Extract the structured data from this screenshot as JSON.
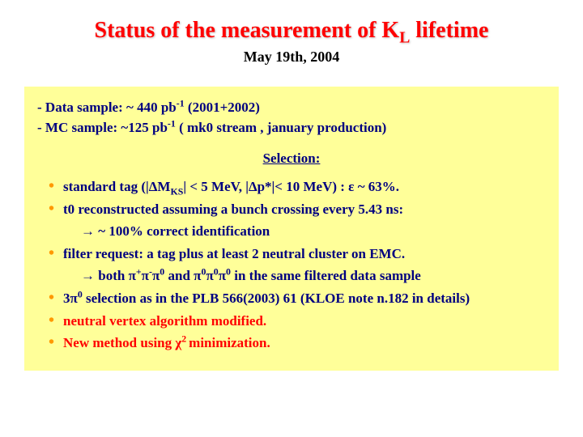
{
  "colors": {
    "title": "#ff0000",
    "body_text": "#000080",
    "bullet": "#ff9900",
    "highlight_box_bg": "#ffff99",
    "red_item": "#ff0000",
    "background": "#ffffff"
  },
  "title": {
    "pre": "Status of the measurement of K",
    "sub": "L",
    "post": " lifetime"
  },
  "date": "May 19th, 2004",
  "top_lines": {
    "line1_pre": "- Data sample: ~ 440 pb",
    "line1_sup": "-1",
    "line1_post": " (2001+2002)",
    "line2_pre": "- MC sample: ~125 pb",
    "line2_sup": "-1",
    "line2_post": "    ( mk0 stream , january production)"
  },
  "selection_heading": "Selection:",
  "items": {
    "i1": {
      "a": "standard tag (|ΔM",
      "b": "KS",
      "c": "| < 5 MeV, |Δp*|< 10 MeV) : ε ~ 63%."
    },
    "i2": "t0 reconstructed assuming a bunch crossing every 5.43 ns:",
    "i2_sub": "→ ~ 100% correct identification",
    "i3": "filter request: a tag plus at least 2 neutral cluster on EMC.",
    "i3_sub": {
      "a": "→  both π",
      "b": "+",
      "c": "π",
      "d": "-",
      "e": "π",
      "f": "0",
      "g": " and π",
      "h": "0",
      "i": "π",
      "j": "0",
      "k": "π",
      "l": "0",
      "m": " in the same filtered data sample"
    },
    "i4": {
      "a": "3π",
      "b": "0",
      "c": " selection as in the PLB 566(2003) 61  (KLOE note n.182 in details)"
    },
    "i5": "neutral vertex algorithm modified.",
    "i6": {
      "a": "New method using χ",
      "b": "2 ",
      "c": "minimization."
    }
  }
}
